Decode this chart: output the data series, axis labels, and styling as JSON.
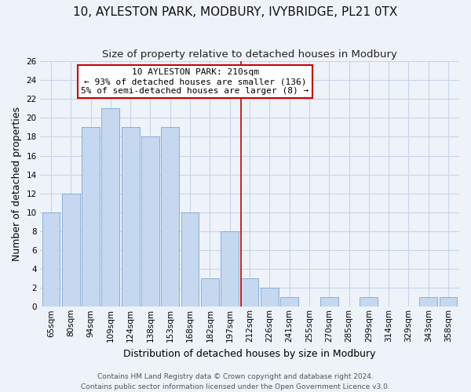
{
  "title": "10, AYLESTON PARK, MODBURY, IVYBRIDGE, PL21 0TX",
  "subtitle": "Size of property relative to detached houses in Modbury",
  "xlabel": "Distribution of detached houses by size in Modbury",
  "ylabel": "Number of detached properties",
  "bar_labels": [
    "65sqm",
    "80sqm",
    "94sqm",
    "109sqm",
    "124sqm",
    "138sqm",
    "153sqm",
    "168sqm",
    "182sqm",
    "197sqm",
    "212sqm",
    "226sqm",
    "241sqm",
    "255sqm",
    "270sqm",
    "285sqm",
    "299sqm",
    "314sqm",
    "329sqm",
    "343sqm",
    "358sqm"
  ],
  "bar_values": [
    10,
    12,
    19,
    21,
    19,
    18,
    19,
    10,
    3,
    8,
    3,
    2,
    1,
    0,
    1,
    0,
    1,
    0,
    0,
    1,
    1
  ],
  "bar_color": "#c5d8f0",
  "bar_edge_color": "#7ba8d4",
  "vline_index": 10,
  "vline_color": "#cc0000",
  "annotation_title": "10 AYLESTON PARK: 210sqm",
  "annotation_line1": "← 93% of detached houses are smaller (136)",
  "annotation_line2": "5% of semi-detached houses are larger (8) →",
  "annotation_box_color": "#ffffff",
  "annotation_box_edge": "#cc0000",
  "ylim": [
    0,
    26
  ],
  "yticks": [
    0,
    2,
    4,
    6,
    8,
    10,
    12,
    14,
    16,
    18,
    20,
    22,
    24,
    26
  ],
  "grid_color": "#c8d4e8",
  "footer1": "Contains HM Land Registry data © Crown copyright and database right 2024.",
  "footer2": "Contains public sector information licensed under the Open Government Licence v3.0.",
  "bg_color": "#eef2f9",
  "title_fontsize": 11,
  "subtitle_fontsize": 9.5,
  "axis_label_fontsize": 9,
  "tick_fontsize": 7.5,
  "annotation_fontsize": 8,
  "footer_fontsize": 6.5
}
